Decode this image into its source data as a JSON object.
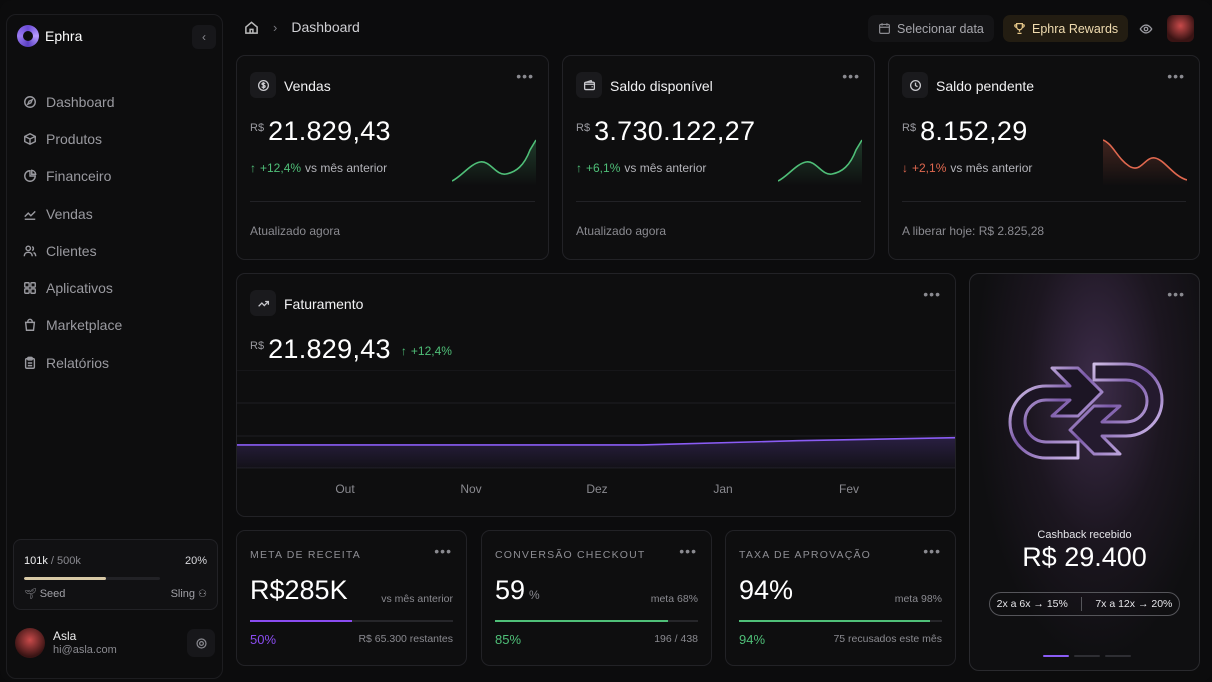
{
  "brand": {
    "name": "Ephra"
  },
  "sidebar": {
    "items": [
      {
        "label": "Dashboard",
        "icon": "compass-icon"
      },
      {
        "label": "Produtos",
        "icon": "box-icon"
      },
      {
        "label": "Financeiro",
        "icon": "pie-chart-icon"
      },
      {
        "label": "Vendas",
        "icon": "trend-icon"
      },
      {
        "label": "Clientes",
        "icon": "users-icon"
      },
      {
        "label": "Aplicativos",
        "icon": "grid-icon"
      },
      {
        "label": "Marketplace",
        "icon": "bag-icon"
      },
      {
        "label": "Relatórios",
        "icon": "clipboard-icon"
      }
    ],
    "progress": {
      "current": "101k",
      "separator": " / ",
      "target": "500k",
      "percent_label": "20%",
      "level_from": "Seed",
      "level_to": "Sling",
      "fraction": 0.2
    },
    "user": {
      "name": "Asla",
      "email": "hi@asla.com"
    }
  },
  "topbar": {
    "breadcrumb": "Dashboard",
    "date_button": "Selecionar data",
    "rewards_button": "Ephra Rewards"
  },
  "cards": {
    "vendas": {
      "title": "Vendas",
      "currency": "R$",
      "value": "21.829,43",
      "delta": "+12,4%",
      "delta_text": "vs mês anterior",
      "footer": "Atualizado agora"
    },
    "saldo": {
      "title": "Saldo disponível",
      "currency": "R$",
      "value": "3.730.122,27",
      "delta": "+6,1%",
      "delta_text": "vs mês anterior",
      "footer": "Atualizado agora"
    },
    "pendente": {
      "title": "Saldo pendente",
      "currency": "R$",
      "value": "8.152,29",
      "delta": "+2,1%",
      "delta_text": "vs mês anterior",
      "footer": "A liberar hoje: R$ 2.825,28"
    }
  },
  "faturamento": {
    "title": "Faturamento",
    "currency": "R$",
    "value": "21.829,43",
    "delta": "+12,4%",
    "chart_data": {
      "type": "area",
      "categories": [
        "Out",
        "Nov",
        "Dez",
        "Jan",
        "Fev"
      ],
      "series": [
        {
          "values": [
            0.38,
            0.38,
            0.38,
            0.45,
            0.5
          ]
        }
      ],
      "grid": true,
      "accent": "#8a5cf5"
    }
  },
  "kpis": {
    "meta": {
      "label": "META DE RECEITA",
      "value": "R$285K",
      "unit": "",
      "note": "vs mês anterior",
      "percent": "50%",
      "fraction": 0.5,
      "rest": "R$ 65.300 restantes",
      "color": "#8a4cf0"
    },
    "conversao": {
      "label": "CONVERSÃO CHECKOUT",
      "value": "59",
      "unit": "%",
      "note": "meta 68%",
      "percent": "85%",
      "fraction": 0.85,
      "rest": "196 / 438",
      "color": "#4fbf78"
    },
    "aprovacao": {
      "label": "TAXA DE APROVAÇÃO",
      "value": "94%",
      "unit": "",
      "note": "meta 98%",
      "percent": "94%",
      "fraction": 0.94,
      "rest": "75 recusados este mês",
      "color": "#4fbf78"
    }
  },
  "cashback": {
    "label": "Cashback recebido",
    "value": "R$ 29.400",
    "tier1": "2x a 6x → 15%",
    "tier2": "7x a 12x → 20%"
  }
}
